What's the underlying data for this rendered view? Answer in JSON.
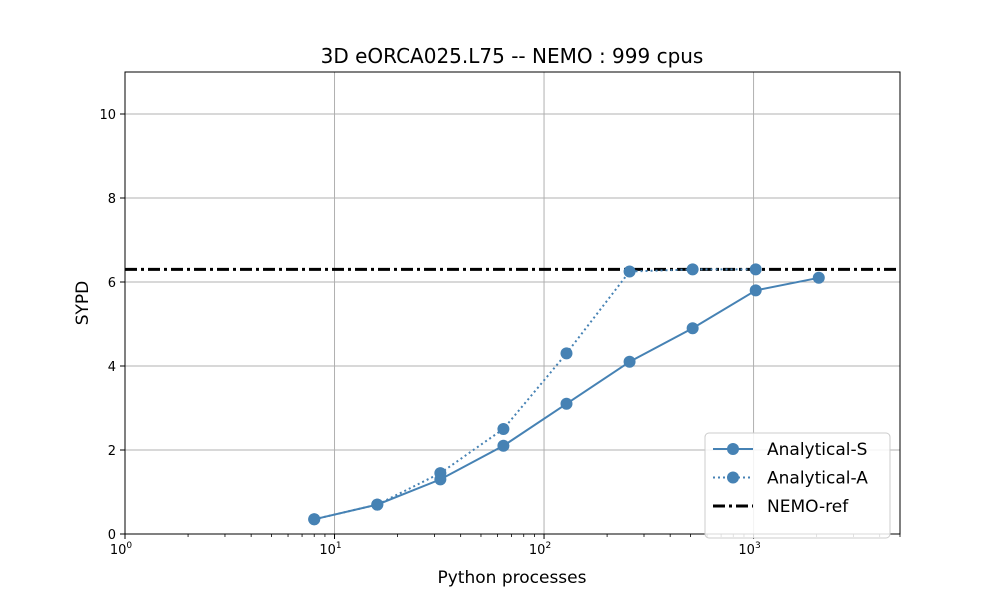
{
  "chart_data": {
    "type": "line",
    "title": "3D eORCA025.L75 -- NEMO : 999 cpus",
    "xlabel": "Python processes",
    "ylabel": "SYPD",
    "xscale": "log",
    "xlim": [
      1,
      5000
    ],
    "ylim": [
      0,
      11
    ],
    "x_ticks": [
      1,
      10,
      100,
      1000
    ],
    "x_tick_labels": [
      {
        "base": "10",
        "exp": "0"
      },
      {
        "base": "10",
        "exp": "1"
      },
      {
        "base": "10",
        "exp": "2"
      },
      {
        "base": "10",
        "exp": "3"
      }
    ],
    "y_ticks": [
      0,
      2,
      4,
      6,
      8,
      10
    ],
    "grid": true,
    "legend_position": "bottom-right",
    "series": [
      {
        "name": "Analytical-S",
        "line_style": "solid",
        "marker": "circle",
        "color": "#4682b4",
        "x": [
          8,
          16,
          32,
          64,
          128,
          256,
          512,
          1024,
          2048
        ],
        "y": [
          0.35,
          0.7,
          1.3,
          2.1,
          3.1,
          4.1,
          4.9,
          5.8,
          6.1
        ]
      },
      {
        "name": "Analytical-A",
        "line_style": "dotted",
        "marker": "circle",
        "color": "#4682b4",
        "x": [
          8,
          16,
          32,
          64,
          128,
          256,
          512,
          1024
        ],
        "y": [
          0.35,
          0.7,
          1.45,
          2.5,
          4.3,
          6.25,
          6.3,
          6.3
        ]
      }
    ],
    "reference_lines": [
      {
        "name": "NEMO-ref",
        "line_style": "dashdot",
        "color": "#000000",
        "y": 6.3
      }
    ]
  }
}
